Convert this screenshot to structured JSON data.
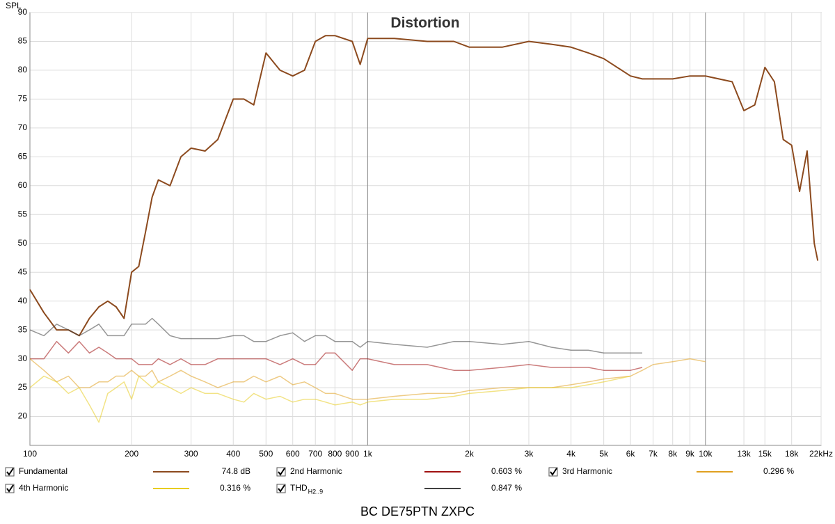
{
  "chart_data": {
    "type": "line",
    "title": "Distortion",
    "y_label": "SPL",
    "caption": "BC DE75PTN ZXPC",
    "log_x": true,
    "grid": true,
    "xlim": [
      100,
      22000
    ],
    "ylim": [
      15,
      90
    ],
    "xticks": [
      100,
      200,
      300,
      400,
      500,
      600,
      700,
      800,
      900,
      {
        "value": 1000,
        "label": "1k"
      },
      {
        "value": 2000,
        "label": "2k"
      },
      {
        "value": 3000,
        "label": "3k"
      },
      {
        "value": 4000,
        "label": "4k"
      },
      {
        "value": 5000,
        "label": "5k"
      },
      {
        "value": 6000,
        "label": "6k"
      },
      {
        "value": 7000,
        "label": "7k"
      },
      {
        "value": 8000,
        "label": "8k"
      },
      {
        "value": 9000,
        "label": "9k"
      },
      {
        "value": 10000,
        "label": "10k"
      },
      {
        "value": 13000,
        "label": "13k"
      },
      {
        "value": 15000,
        "label": "15k"
      },
      {
        "value": 18000,
        "label": "18k"
      },
      {
        "value": 22000,
        "label": "22kHz"
      }
    ],
    "yticks": [
      20,
      25,
      30,
      35,
      40,
      45,
      50,
      55,
      60,
      65,
      70,
      75,
      80,
      85,
      90
    ],
    "x": [
      100,
      110,
      120,
      130,
      140,
      150,
      160,
      170,
      180,
      190,
      200,
      210,
      220,
      230,
      240,
      260,
      280,
      300,
      330,
      360,
      400,
      430,
      460,
      500,
      550,
      600,
      650,
      700,
      750,
      800,
      900,
      950,
      1000,
      1200,
      1500,
      1800,
      2000,
      2500,
      3000,
      3500,
      4000,
      4500,
      5000,
      6000,
      6500,
      7000,
      8000,
      9000,
      10000,
      12000,
      13000,
      14000,
      15000,
      16000,
      17000,
      18000,
      19000,
      20000,
      21000,
      21500
    ],
    "series": [
      {
        "name": "Fundamental",
        "color": "#8c4a1e",
        "legend_value": "74.8 dB",
        "values": [
          42,
          38,
          35,
          35,
          34,
          37,
          39,
          40,
          39,
          37,
          45,
          46,
          52,
          58,
          61,
          60,
          65,
          66.5,
          66,
          68,
          75,
          75,
          74,
          83,
          80,
          79,
          80,
          85,
          86,
          86,
          85,
          81,
          85.5,
          85.5,
          85,
          85,
          84,
          84,
          85,
          84.5,
          84,
          83,
          82,
          79,
          78.5,
          78.5,
          78.5,
          79,
          79,
          78,
          73,
          74,
          80.5,
          78,
          68,
          67,
          59,
          66,
          50,
          47
        ]
      },
      {
        "name": "2nd Harmonic",
        "color": "#a01010",
        "legend_value": "0.603 %",
        "values": [
          30,
          30,
          33,
          31,
          33,
          31,
          32,
          31,
          30,
          30,
          30,
          29,
          29,
          29,
          30,
          29,
          30,
          29,
          29,
          30,
          30,
          30,
          30,
          30,
          29,
          30,
          29,
          29,
          31,
          31,
          28,
          30,
          30,
          29,
          29,
          28,
          28,
          28.5,
          29,
          28.5,
          28.5,
          28.5,
          28,
          28,
          28.5,
          null,
          null,
          null,
          null,
          null,
          null,
          null,
          null,
          null,
          null,
          null,
          null,
          null,
          null,
          null
        ]
      },
      {
        "name": "3rd Harmonic",
        "color": "#e0a020",
        "legend_value": "0.296 %",
        "values": [
          30,
          28,
          26,
          27,
          25,
          25,
          26,
          26,
          27,
          27,
          28,
          27,
          27,
          28,
          26,
          27,
          28,
          27,
          26,
          25,
          26,
          26,
          27,
          26,
          27,
          25.5,
          26,
          25,
          24,
          24,
          23,
          23,
          23,
          23.5,
          24,
          24,
          24.5,
          25,
          25,
          25,
          25.5,
          26,
          26.5,
          27,
          28,
          29,
          29.5,
          30,
          29.5,
          null,
          null,
          null,
          null,
          null,
          null,
          null,
          null,
          null,
          null,
          null
        ]
      },
      {
        "name": "4th Harmonic",
        "color": "#e8cc20",
        "legend_value": "0.316 %",
        "values": [
          25,
          27,
          26,
          24,
          25,
          22,
          19,
          24,
          25,
          26,
          23,
          27,
          26,
          25,
          26,
          25,
          24,
          25,
          24,
          24,
          23,
          22.5,
          24,
          23,
          23.5,
          22.5,
          23,
          23,
          22.5,
          22,
          22.5,
          22,
          22.5,
          23,
          23,
          23.5,
          24,
          24.5,
          25,
          25,
          25,
          25.5,
          26,
          27,
          null,
          null,
          null,
          null,
          null,
          null,
          null,
          null,
          null,
          null,
          null,
          null,
          null,
          null,
          null,
          null
        ]
      },
      {
        "name": "THD",
        "name_subscript": "H2..9",
        "color": "#404040",
        "legend_value": "0.847 %",
        "values": [
          35,
          34,
          36,
          35,
          34,
          35,
          36,
          34,
          34,
          34,
          36,
          36,
          36,
          37,
          36,
          34,
          33.5,
          33.5,
          33.5,
          33.5,
          34,
          34,
          33,
          33,
          34,
          34.5,
          33,
          34,
          34,
          33,
          33,
          32,
          33,
          32.5,
          32,
          33,
          33,
          32.5,
          33,
          32,
          31.5,
          31.5,
          31,
          31,
          31,
          null,
          null,
          null,
          null,
          null,
          null,
          null,
          null,
          null,
          null,
          null,
          null,
          null,
          null,
          null
        ]
      }
    ]
  }
}
